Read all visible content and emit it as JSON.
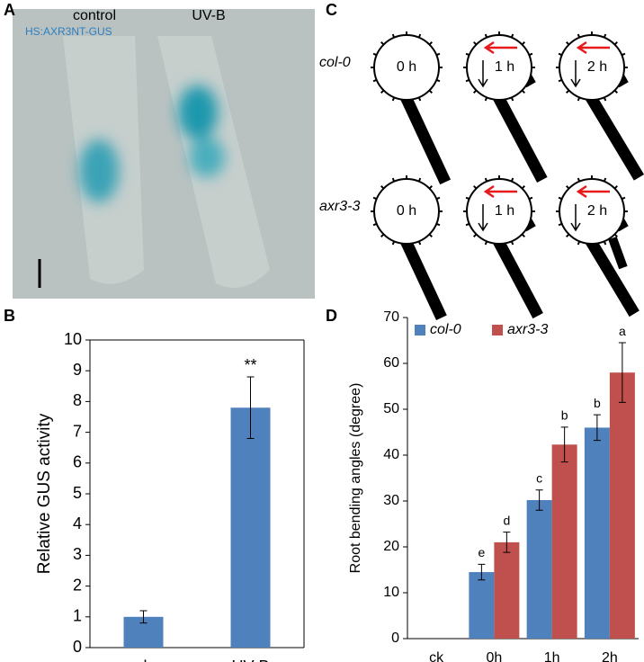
{
  "panel_labels": [
    "A",
    "B",
    "C",
    "D"
  ],
  "image_a": {
    "labels": [
      "control",
      "UV-B"
    ],
    "caption": "HS:AXR3NT-GUS"
  },
  "diagram_c": {
    "rows": [
      "col-0",
      "axr3-3"
    ],
    "times": [
      "0 h",
      "1 h",
      "2 h"
    ]
  },
  "chart_data": [
    {
      "type": "bar",
      "ylabel": "Relative GUS activity",
      "categories": [
        "ck",
        "UV-B"
      ],
      "values": [
        1,
        7.8
      ],
      "errors": [
        0.2,
        1.0
      ],
      "color": "#4f81bd",
      "annotations": [
        null,
        "**"
      ],
      "ylim": [
        0,
        10
      ],
      "yticks": [
        0,
        1,
        2,
        3,
        4,
        5,
        6,
        7,
        8,
        9,
        10
      ]
    },
    {
      "type": "bar",
      "ylabel": "Root bending angles (degree)",
      "categories": [
        "ck",
        "0h",
        "1h",
        "2h"
      ],
      "series": [
        {
          "name": "col-0",
          "color": "#4f81bd",
          "values": [
            null,
            14.5,
            30.2,
            46
          ],
          "errors": [
            null,
            1.7,
            2.2,
            2.8
          ],
          "letters": [
            null,
            "e",
            "c",
            "b"
          ]
        },
        {
          "name": "axr3-3",
          "color": "#c0504d",
          "values": [
            null,
            21,
            42.3,
            58
          ],
          "errors": [
            null,
            2.2,
            3.8,
            6.5
          ],
          "letters": [
            null,
            "d",
            "b",
            "a"
          ]
        }
      ],
      "legend": "top-left",
      "ylim": [
        0,
        70
      ],
      "yticks": [
        0,
        10,
        20,
        30,
        40,
        50,
        60,
        70
      ]
    }
  ]
}
